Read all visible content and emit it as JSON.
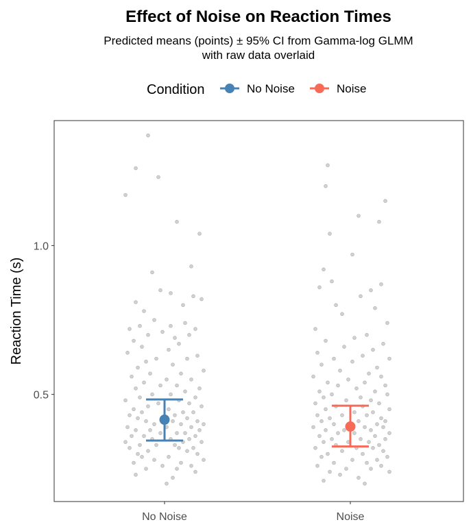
{
  "chart_data": {
    "type": "scatter",
    "title": "Effect of Noise on Reaction Times",
    "subtitle_lines": [
      "Predicted means (points) ± 95% CI from Gamma-log GLMM",
      "with raw data overlaid"
    ],
    "xlabel": "",
    "ylabel": "Reaction Time (s)",
    "categories": [
      "No Noise",
      "Noise"
    ],
    "ylim": [
      0.14,
      1.42
    ],
    "yticks": [
      0.5,
      1.0
    ],
    "ytick_labels": [
      "0.5",
      "1.0"
    ],
    "legend": {
      "title": "Condition",
      "position": "top",
      "entries": [
        "No Noise",
        "Noise"
      ]
    },
    "colors": {
      "No Noise": "#4682B4",
      "Noise": "#F86A58",
      "raw_points": "#9a9a9a"
    },
    "grid": false,
    "series": [
      {
        "name": "No Noise",
        "mean": 0.415,
        "ci_low": 0.345,
        "ci_high": 0.483,
        "raw": [
          1.37,
          1.26,
          1.23,
          1.17,
          1.08,
          1.04,
          0.93,
          0.91,
          0.85,
          0.84,
          0.83,
          0.82,
          0.81,
          0.8,
          0.78,
          0.75,
          0.74,
          0.73,
          0.73,
          0.72,
          0.72,
          0.71,
          0.7,
          0.7,
          0.69,
          0.68,
          0.67,
          0.66,
          0.65,
          0.64,
          0.63,
          0.62,
          0.62,
          0.61,
          0.6,
          0.59,
          0.58,
          0.57,
          0.57,
          0.56,
          0.55,
          0.55,
          0.54,
          0.53,
          0.53,
          0.52,
          0.52,
          0.51,
          0.5,
          0.5,
          0.49,
          0.49,
          0.48,
          0.48,
          0.47,
          0.47,
          0.46,
          0.46,
          0.45,
          0.45,
          0.44,
          0.44,
          0.44,
          0.43,
          0.43,
          0.42,
          0.42,
          0.42,
          0.41,
          0.41,
          0.41,
          0.4,
          0.4,
          0.4,
          0.39,
          0.39,
          0.39,
          0.38,
          0.38,
          0.38,
          0.37,
          0.37,
          0.37,
          0.36,
          0.36,
          0.36,
          0.35,
          0.35,
          0.35,
          0.34,
          0.34,
          0.34,
          0.33,
          0.33,
          0.33,
          0.32,
          0.32,
          0.32,
          0.31,
          0.31,
          0.3,
          0.3,
          0.29,
          0.29,
          0.28,
          0.28,
          0.27,
          0.27,
          0.26,
          0.26,
          0.25,
          0.25,
          0.24,
          0.23,
          0.22,
          0.2
        ],
        "jitter": [
          -0.08,
          -0.14,
          -0.03,
          -0.19,
          0.06,
          0.17,
          0.13,
          -0.06,
          -0.02,
          0.03,
          0.14,
          0.18,
          -0.14,
          0.09,
          -0.1,
          -0.05,
          0.1,
          -0.12,
          0.03,
          -0.17,
          0.15,
          -0.01,
          -0.08,
          0.12,
          0.05,
          -0.15,
          0.07,
          -0.11,
          0.02,
          -0.18,
          0.16,
          -0.04,
          0.11,
          -0.09,
          0.04,
          -0.13,
          0.19,
          -0.07,
          0.08,
          -0.16,
          0.01,
          0.13,
          -0.1,
          0.06,
          -0.02,
          0.17,
          -0.14,
          0.1,
          -0.06,
          0.03,
          0.15,
          -0.12,
          -0.19,
          0.07,
          0.12,
          -0.03,
          0.18,
          -0.08,
          0.02,
          -0.15,
          0.09,
          -0.11,
          0.14,
          0.05,
          -0.17,
          0.11,
          -0.01,
          -0.13,
          0.16,
          0.04,
          -0.09,
          0.19,
          -0.05,
          0.08,
          -0.18,
          0.13,
          0.01,
          -0.07,
          0.17,
          -0.14,
          0.06,
          -0.02,
          0.1,
          -0.16,
          0.15,
          -0.1,
          0.03,
          0.12,
          -0.06,
          -0.19,
          0.09,
          0.18,
          -0.12,
          0.05,
          -0.04,
          0.14,
          -0.17,
          0.07,
          -0.08,
          0.11,
          -0.13,
          0.16,
          0.02,
          -0.11,
          0.19,
          -0.05,
          0.08,
          -0.15,
          0.13,
          -0.01,
          0.06,
          -0.09,
          0.15,
          -0.14,
          0.04,
          0.01
        ]
      },
      {
        "name": "Noise",
        "mean": 0.392,
        "ci_low": 0.325,
        "ci_high": 0.462,
        "raw": [
          1.27,
          1.2,
          1.15,
          1.1,
          1.08,
          1.04,
          0.97,
          0.92,
          0.88,
          0.87,
          0.86,
          0.85,
          0.83,
          0.8,
          0.79,
          0.77,
          0.74,
          0.72,
          0.7,
          0.69,
          0.68,
          0.67,
          0.66,
          0.65,
          0.64,
          0.63,
          0.62,
          0.62,
          0.61,
          0.6,
          0.59,
          0.58,
          0.57,
          0.56,
          0.56,
          0.55,
          0.54,
          0.54,
          0.53,
          0.53,
          0.52,
          0.51,
          0.51,
          0.5,
          0.5,
          0.49,
          0.49,
          0.48,
          0.48,
          0.47,
          0.47,
          0.46,
          0.46,
          0.45,
          0.45,
          0.44,
          0.44,
          0.43,
          0.43,
          0.43,
          0.42,
          0.42,
          0.41,
          0.41,
          0.41,
          0.4,
          0.4,
          0.4,
          0.39,
          0.39,
          0.39,
          0.38,
          0.38,
          0.38,
          0.37,
          0.37,
          0.37,
          0.36,
          0.36,
          0.35,
          0.35,
          0.35,
          0.34,
          0.34,
          0.34,
          0.33,
          0.33,
          0.32,
          0.32,
          0.32,
          0.31,
          0.31,
          0.3,
          0.3,
          0.29,
          0.29,
          0.28,
          0.28,
          0.27,
          0.27,
          0.26,
          0.26,
          0.25,
          0.25,
          0.24,
          0.24,
          0.23,
          0.22,
          0.21,
          0.2
        ],
        "jitter": [
          -0.11,
          -0.12,
          0.17,
          0.04,
          0.14,
          -0.1,
          0.01,
          -0.13,
          -0.09,
          0.15,
          -0.15,
          0.1,
          0.05,
          -0.07,
          0.12,
          -0.04,
          0.18,
          -0.17,
          0.08,
          0.02,
          -0.12,
          0.16,
          -0.03,
          0.11,
          -0.16,
          0.06,
          -0.08,
          0.19,
          0.01,
          -0.14,
          0.13,
          -0.05,
          0.09,
          -0.18,
          0.15,
          -0.01,
          0.07,
          -0.11,
          0.17,
          -0.06,
          0.03,
          -0.15,
          0.12,
          -0.09,
          0.18,
          0.05,
          -0.13,
          0.1,
          -0.02,
          -0.17,
          0.14,
          0.06,
          -0.07,
          0.19,
          -0.12,
          0.02,
          0.11,
          -0.16,
          0.08,
          -0.04,
          0.15,
          -0.1,
          0.04,
          0.17,
          -0.14,
          0.0,
          0.13,
          -0.08,
          0.07,
          -0.18,
          0.16,
          -0.03,
          0.1,
          -0.12,
          0.19,
          -0.06,
          0.02,
          -0.15,
          0.12,
          0.05,
          -0.09,
          0.17,
          -0.01,
          -0.13,
          0.09,
          0.14,
          -0.07,
          0.03,
          -0.17,
          0.11,
          -0.04,
          0.16,
          -0.11,
          0.06,
          0.18,
          -0.14,
          0.01,
          0.13,
          -0.08,
          0.08,
          -0.16,
          0.15,
          -0.02,
          0.1,
          -0.1,
          0.19,
          -0.05,
          0.04,
          -0.13,
          0.07
        ]
      }
    ]
  }
}
